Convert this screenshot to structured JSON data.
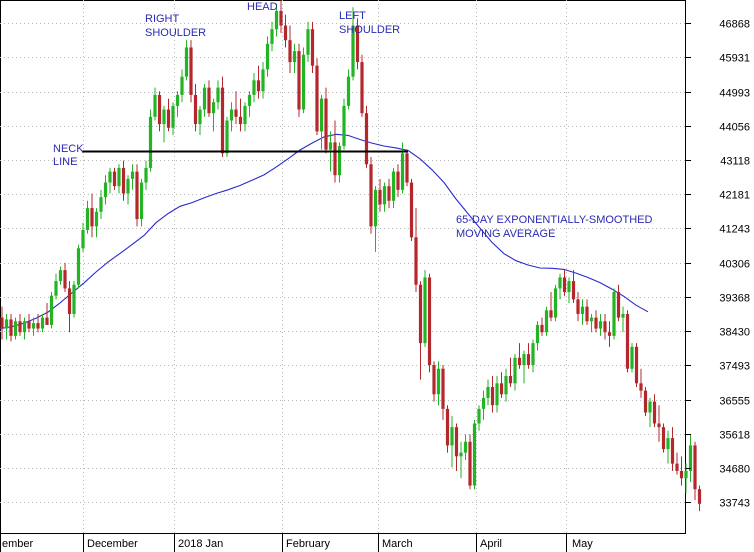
{
  "chart_data": {
    "type": "candlestick",
    "x_axis": {
      "labels": [
        "ember",
        "December",
        "2018 Jan",
        "February",
        "March",
        "April",
        "May"
      ]
    },
    "y_axis": {
      "position": "right",
      "ticks": [
        46868,
        45931,
        44993,
        44056,
        43118,
        42181,
        41243,
        40306,
        39368,
        38430,
        37493,
        36555,
        35618,
        34680,
        33743
      ],
      "ylim": [
        32900,
        47500
      ]
    },
    "grid": true,
    "colors": {
      "up": "#22b422",
      "down": "#b4282d",
      "moving_average": "#2a2ad0",
      "neckline": "#000000",
      "annotation": "#2a2ab4",
      "grid": "#b8b8b8"
    },
    "annotations": [
      {
        "key": "neck",
        "lines": [
          "NECK",
          "LINE"
        ]
      },
      {
        "key": "right_shoulder",
        "lines": [
          "RIGHT",
          "SHOULDER"
        ]
      },
      {
        "key": "head",
        "lines": [
          "HEAD"
        ]
      },
      {
        "key": "left_shoulder",
        "lines": [
          "LEFT",
          "SHOULDER"
        ]
      },
      {
        "key": "ema",
        "lines": [
          "65-DAY EXPONENTIALLY-SMOOTHED",
          "MOVING AVERAGE"
        ]
      }
    ],
    "neckline": {
      "value": 43350
    },
    "candles": [
      [
        38800,
        39100,
        38200,
        38500
      ],
      [
        38500,
        38900,
        38200,
        38750
      ],
      [
        38750,
        38900,
        38150,
        38300
      ],
      [
        38300,
        38800,
        38200,
        38700
      ],
      [
        38700,
        38900,
        38300,
        38400
      ],
      [
        38400,
        38800,
        38200,
        38700
      ],
      [
        38700,
        38900,
        38400,
        38500
      ],
      [
        38500,
        38800,
        38300,
        38650
      ],
      [
        38650,
        38900,
        38400,
        38500
      ],
      [
        38500,
        38900,
        38400,
        38800
      ],
      [
        38800,
        39200,
        38600,
        38600
      ],
      [
        38600,
        39500,
        38500,
        39400
      ],
      [
        39400,
        40000,
        39300,
        39800
      ],
      [
        39800,
        40200,
        39700,
        40100
      ],
      [
        40100,
        40300,
        39500,
        39600
      ],
      [
        39600,
        39800,
        38400,
        38900
      ],
      [
        38900,
        39800,
        38800,
        39700
      ],
      [
        39700,
        40800,
        39600,
        40700
      ],
      [
        40700,
        41400,
        40600,
        41200
      ],
      [
        41200,
        42000,
        41100,
        41800
      ],
      [
        41800,
        42200,
        41000,
        41300
      ],
      [
        41300,
        41800,
        41000,
        41700
      ],
      [
        41700,
        42300,
        41500,
        42100
      ],
      [
        42100,
        42700,
        41900,
        42500
      ],
      [
        42500,
        42900,
        42200,
        42800
      ],
      [
        42800,
        42900,
        42300,
        42400
      ],
      [
        42400,
        43000,
        42200,
        42900
      ],
      [
        42900,
        43100,
        42000,
        42200
      ],
      [
        42200,
        42700,
        41900,
        42600
      ],
      [
        42600,
        43000,
        42300,
        42800
      ],
      [
        42800,
        43000,
        41300,
        41500
      ],
      [
        41500,
        42600,
        41300,
        42500
      ],
      [
        42500,
        43100,
        42300,
        42900
      ],
      [
        42900,
        44500,
        42800,
        44300
      ],
      [
        44300,
        45100,
        44200,
        44900
      ],
      [
        44900,
        45000,
        43900,
        44100
      ],
      [
        44100,
        44600,
        43600,
        44500
      ],
      [
        44500,
        44800,
        43900,
        44000
      ],
      [
        44000,
        44700,
        43800,
        44600
      ],
      [
        44600,
        45000,
        44300,
        44900
      ],
      [
        44900,
        45600,
        44700,
        45400
      ],
      [
        45400,
        46400,
        45300,
        46200
      ],
      [
        46200,
        46400,
        44700,
        44900
      ],
      [
        44900,
        45200,
        43900,
        44100
      ],
      [
        44100,
        44600,
        43800,
        44500
      ],
      [
        44500,
        45200,
        44300,
        45100
      ],
      [
        45100,
        45300,
        44300,
        44400
      ],
      [
        44400,
        44800,
        43900,
        44700
      ],
      [
        44700,
        45300,
        44500,
        45100
      ],
      [
        45100,
        45400,
        43200,
        43300
      ],
      [
        43300,
        44300,
        43200,
        44200
      ],
      [
        44200,
        44700,
        43900,
        44500
      ],
      [
        44500,
        45000,
        44100,
        44300
      ],
      [
        44300,
        44800,
        43900,
        44100
      ],
      [
        44100,
        44700,
        43900,
        44600
      ],
      [
        44600,
        45000,
        44300,
        44900
      ],
      [
        44900,
        45500,
        44700,
        45300
      ],
      [
        45300,
        45700,
        44800,
        45000
      ],
      [
        45000,
        45800,
        44800,
        45600
      ],
      [
        45600,
        46500,
        45400,
        46300
      ],
      [
        46300,
        46900,
        46100,
        46700
      ],
      [
        46700,
        47400,
        46500,
        47200
      ],
      [
        47200,
        47500,
        46600,
        46800
      ],
      [
        46800,
        47100,
        46200,
        46400
      ],
      [
        46400,
        46800,
        45500,
        45800
      ],
      [
        45800,
        46300,
        45500,
        46100
      ],
      [
        46100,
        46300,
        44300,
        44500
      ],
      [
        44500,
        46200,
        44400,
        46000
      ],
      [
        46000,
        46900,
        45800,
        46700
      ],
      [
        46700,
        46900,
        45500,
        45700
      ],
      [
        45700,
        45900,
        43800,
        43900
      ],
      [
        43900,
        44900,
        43400,
        44800
      ],
      [
        44800,
        45100,
        43300,
        43400
      ],
      [
        43400,
        43900,
        42800,
        43600
      ],
      [
        43600,
        44200,
        42500,
        42700
      ],
      [
        42700,
        43600,
        42500,
        43500
      ],
      [
        43500,
        44800,
        43400,
        44600
      ],
      [
        44600,
        45600,
        44500,
        45400
      ],
      [
        45400,
        47300,
        45300,
        46800
      ],
      [
        46800,
        47000,
        45600,
        45800
      ],
      [
        45800,
        46000,
        44300,
        44400
      ],
      [
        44400,
        44600,
        42900,
        43000
      ],
      [
        43000,
        43200,
        41100,
        41300
      ],
      [
        41300,
        42400,
        40600,
        42300
      ],
      [
        42300,
        42600,
        41700,
        41900
      ],
      [
        41900,
        42500,
        41700,
        42400
      ],
      [
        42400,
        42600,
        41800,
        42000
      ],
      [
        42000,
        42900,
        41800,
        42800
      ],
      [
        42800,
        43000,
        42100,
        42300
      ],
      [
        42300,
        43600,
        42200,
        43300
      ],
      [
        43300,
        43400,
        42400,
        42500
      ],
      [
        42500,
        42600,
        40900,
        41000
      ],
      [
        41000,
        41800,
        39500,
        39700
      ],
      [
        39700,
        39800,
        37100,
        38100
      ],
      [
        38100,
        40100,
        38000,
        39900
      ],
      [
        39900,
        40000,
        37300,
        37500
      ],
      [
        37500,
        37600,
        36500,
        36700
      ],
      [
        36700,
        37600,
        36400,
        37400
      ],
      [
        37400,
        37500,
        36000,
        36300
      ],
      [
        36300,
        36400,
        35100,
        35300
      ],
      [
        35300,
        36100,
        34700,
        35800
      ],
      [
        35800,
        35900,
        34600,
        35000
      ],
      [
        35000,
        35400,
        34400,
        35100
      ],
      [
        35100,
        35600,
        34900,
        35400
      ],
      [
        35400,
        35600,
        34100,
        34200
      ],
      [
        34200,
        36000,
        34100,
        35900
      ],
      [
        35900,
        36400,
        35700,
        36300
      ],
      [
        36300,
        36800,
        36000,
        36600
      ],
      [
        36600,
        37100,
        36400,
        36900
      ],
      [
        36900,
        37200,
        36200,
        36400
      ],
      [
        36400,
        37200,
        36200,
        37000
      ],
      [
        37000,
        37300,
        36600,
        36700
      ],
      [
        36700,
        37400,
        36500,
        37200
      ],
      [
        37200,
        37700,
        36900,
        37000
      ],
      [
        37000,
        37800,
        36800,
        37700
      ],
      [
        37700,
        38100,
        37400,
        37500
      ],
      [
        37500,
        37900,
        37000,
        37800
      ],
      [
        37800,
        38100,
        37400,
        37500
      ],
      [
        37500,
        38200,
        37300,
        38100
      ],
      [
        38100,
        38700,
        37900,
        38600
      ],
      [
        38600,
        38800,
        38300,
        38400
      ],
      [
        38400,
        39100,
        38300,
        39000
      ],
      [
        39000,
        39500,
        38700,
        38800
      ],
      [
        38800,
        39700,
        38700,
        39600
      ],
      [
        39600,
        40000,
        39300,
        39900
      ],
      [
        39900,
        40100,
        39400,
        39500
      ],
      [
        39500,
        39900,
        39200,
        39800
      ],
      [
        39800,
        40100,
        39200,
        39300
      ],
      [
        39300,
        39500,
        38700,
        38900
      ],
      [
        38900,
        39300,
        38600,
        39100
      ],
      [
        39100,
        39300,
        38600,
        38700
      ],
      [
        38700,
        38900,
        38400,
        38800
      ],
      [
        38800,
        39000,
        38400,
        38500
      ],
      [
        38500,
        38900,
        38300,
        38700
      ],
      [
        38700,
        38900,
        38200,
        38400
      ],
      [
        38400,
        38700,
        38000,
        38300
      ],
      [
        38300,
        39600,
        38200,
        39500
      ],
      [
        39500,
        39700,
        38700,
        38800
      ],
      [
        38800,
        39100,
        38400,
        38900
      ],
      [
        38900,
        39000,
        37300,
        37400
      ],
      [
        37400,
        38100,
        37300,
        38000
      ],
      [
        38000,
        38100,
        36900,
        37000
      ],
      [
        37000,
        37400,
        36600,
        36800
      ],
      [
        36800,
        36900,
        36100,
        36200
      ],
      [
        36200,
        36600,
        35800,
        36500
      ],
      [
        36500,
        36700,
        35800,
        35900
      ],
      [
        35900,
        36400,
        35400,
        35800
      ],
      [
        35800,
        35900,
        35100,
        35200
      ],
      [
        35200,
        35700,
        34800,
        35500
      ],
      [
        35500,
        35800,
        34600,
        34800
      ],
      [
        34800,
        35100,
        34500,
        34600
      ],
      [
        34600,
        35000,
        34200,
        34400
      ],
      [
        34400,
        34800,
        34000,
        34600
      ],
      [
        34600,
        35600,
        34300,
        35300
      ],
      [
        35300,
        35400,
        33800,
        34100
      ],
      [
        34100,
        34200,
        33500,
        33700
      ]
    ],
    "ema": [
      38500,
      38550,
      38650,
      38780,
      38950,
      39200,
      39480,
      39750,
      40050,
      40320,
      40560,
      40800,
      41050,
      41400,
      41650,
      41850,
      41950,
      42080,
      42200,
      42300,
      42420,
      42560,
      42710,
      42920,
      43150,
      43390,
      43580,
      43750,
      43820,
      43790,
      43680,
      43580,
      43500,
      43450,
      43380,
      43150,
      42850,
      42500,
      42050,
      41650,
      41250,
      40860,
      40550,
      40360,
      40240,
      40160,
      40150,
      40120,
      40020,
      39900,
      39760,
      39580,
      39380,
      39140,
      38960
    ]
  }
}
